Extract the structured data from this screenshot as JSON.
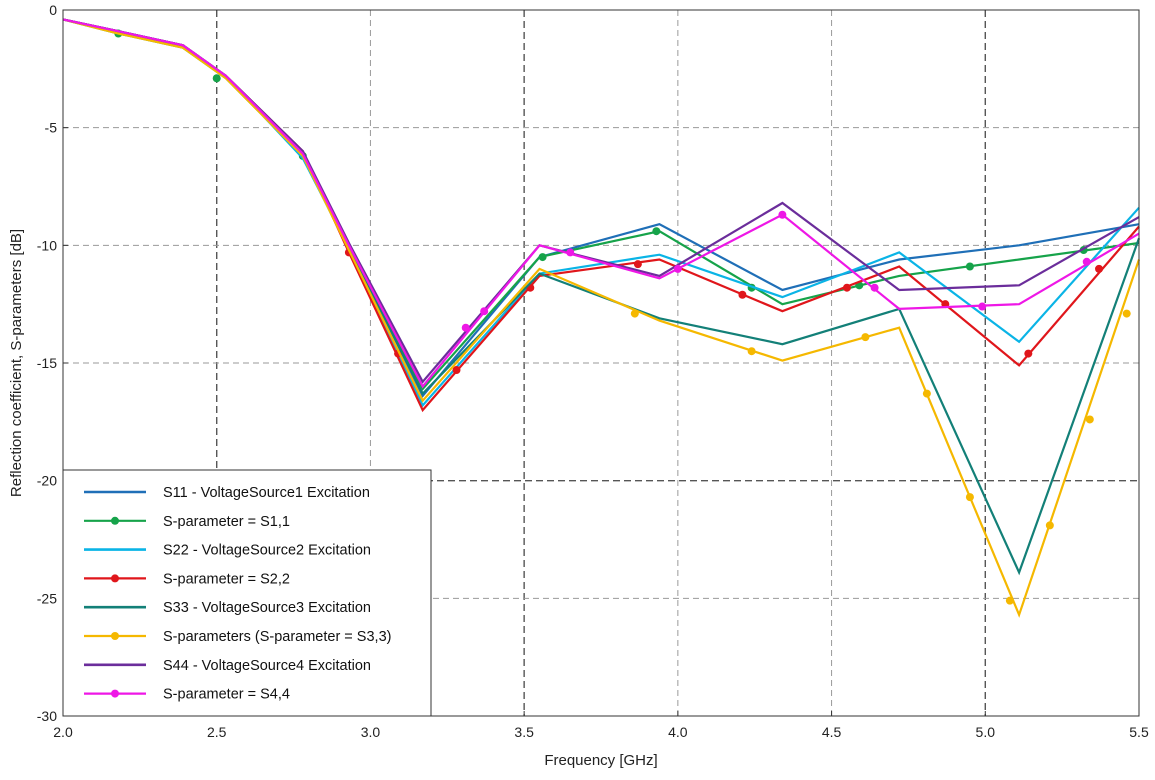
{
  "chart_data": {
    "type": "line",
    "title": "",
    "xlabel": "Frequency [GHz]",
    "ylabel": "Reflection coefficient, S-parameters [dB]",
    "xlim": [
      2.0,
      5.5
    ],
    "ylim": [
      -30,
      0
    ],
    "xticks": [
      2.0,
      2.5,
      3.0,
      3.5,
      4.0,
      4.5,
      5.0,
      5.5
    ],
    "xtick_labels": [
      "2.0",
      "2.5",
      "3.0",
      "3.5",
      "4.0",
      "4.5",
      "5.0",
      "5.5"
    ],
    "yticks": [
      0,
      -5,
      -10,
      -15,
      -20,
      -25,
      -30
    ],
    "ytick_labels": [
      "0",
      "-5",
      "-10",
      "-15",
      "-20",
      "-25",
      "-30"
    ],
    "major_grid_x": [
      2.5,
      3.5,
      5.0
    ],
    "major_grid_y": [
      -20
    ],
    "grid": true,
    "legend_position": "bottom-left",
    "series": [
      {
        "name": "S11 - VoltageSource1 Excitation",
        "color": "#1f6fb7",
        "markers": false,
        "x": [
          2.0,
          2.18,
          2.39,
          2.53,
          2.78,
          2.93,
          3.17,
          3.55,
          3.94,
          4.34,
          4.72,
          5.11,
          5.5
        ],
        "y": [
          -0.4,
          -0.9,
          -1.5,
          -2.8,
          -6.0,
          -10.0,
          -16.4,
          -10.5,
          -9.1,
          -11.9,
          -10.6,
          -10.0,
          -9.1
        ]
      },
      {
        "name": "S-parameter = S1,1",
        "color": "#16a34a",
        "markers": true,
        "x": [
          2.0,
          2.18,
          2.39,
          2.53,
          2.78,
          2.93,
          3.17,
          3.55,
          3.94,
          4.34,
          4.72,
          5.11,
          5.5
        ],
        "y": [
          -0.4,
          -1.0,
          -1.6,
          -2.9,
          -6.2,
          -10.2,
          -16.1,
          -10.5,
          -9.4,
          -12.5,
          -11.3,
          -10.6,
          -9.9
        ],
        "marker_x": [
          2.18,
          2.5,
          2.78,
          3.56,
          3.93,
          4.24,
          4.59,
          4.95,
          5.32
        ],
        "marker_y": [
          -1.0,
          -2.9,
          -6.2,
          -10.5,
          -9.4,
          -11.8,
          -11.7,
          -10.9,
          -10.2
        ]
      },
      {
        "name": "S22 - VoltageSource2 Excitation",
        "color": "#0ab4e6",
        "markers": false,
        "x": [
          2.0,
          2.18,
          2.39,
          2.53,
          2.78,
          2.93,
          3.17,
          3.55,
          3.94,
          4.34,
          4.72,
          5.11,
          5.5
        ],
        "y": [
          -0.4,
          -0.9,
          -1.5,
          -2.8,
          -6.3,
          -10.1,
          -16.8,
          -11.2,
          -10.4,
          -12.2,
          -10.3,
          -14.1,
          -8.4
        ]
      },
      {
        "name": "S-parameter = S2,2",
        "color": "#e0161b",
        "markers": true,
        "x": [
          2.0,
          2.18,
          2.39,
          2.53,
          2.78,
          2.93,
          3.17,
          3.55,
          3.94,
          4.34,
          4.72,
          5.11,
          5.5
        ],
        "y": [
          -0.4,
          -0.9,
          -1.5,
          -2.8,
          -6.0,
          -10.3,
          -17.0,
          -11.3,
          -10.6,
          -12.8,
          -10.9,
          -15.1,
          -9.2
        ],
        "marker_x": [
          2.93,
          3.09,
          3.28,
          3.52,
          3.87,
          4.21,
          4.55,
          4.87,
          5.14,
          5.37
        ],
        "marker_y": [
          -10.3,
          -14.6,
          -15.3,
          -11.8,
          -10.8,
          -12.1,
          -11.8,
          -12.5,
          -14.6,
          -11.0
        ]
      },
      {
        "name": "S33 - VoltageSource3 Excitation",
        "color": "#138078",
        "markers": false,
        "x": [
          2.0,
          2.18,
          2.39,
          2.53,
          2.78,
          2.93,
          3.17,
          3.55,
          3.94,
          4.34,
          4.72,
          5.11,
          5.5
        ],
        "y": [
          -0.4,
          -0.9,
          -1.5,
          -2.8,
          -6.1,
          -10.1,
          -16.3,
          -11.2,
          -13.1,
          -14.2,
          -12.7,
          -23.9,
          -9.7
        ]
      },
      {
        "name": "S-parameters (S-parameter = S3,3)",
        "color": "#f5b800",
        "markers": true,
        "x": [
          2.0,
          2.18,
          2.39,
          2.53,
          2.78,
          2.93,
          3.17,
          3.55,
          3.94,
          4.34,
          4.72,
          5.11,
          5.5
        ],
        "y": [
          -0.4,
          -1.0,
          -1.6,
          -2.9,
          -6.2,
          -10.2,
          -16.6,
          -11.0,
          -13.2,
          -14.9,
          -13.5,
          -25.7,
          -10.6
        ],
        "marker_x": [
          3.86,
          4.24,
          4.61,
          4.81,
          4.95,
          5.08,
          5.21,
          5.34,
          5.46
        ],
        "marker_y": [
          -12.9,
          -14.5,
          -13.9,
          -16.3,
          -20.7,
          -25.1,
          -21.9,
          -17.4,
          -12.9
        ]
      },
      {
        "name": "S44 - VoltageSource4 Excitation",
        "color": "#6b2d9b",
        "markers": false,
        "x": [
          2.0,
          2.18,
          2.39,
          2.53,
          2.78,
          2.93,
          3.17,
          3.55,
          3.94,
          4.34,
          4.72,
          5.11,
          5.5
        ],
        "y": [
          -0.4,
          -0.9,
          -1.5,
          -2.8,
          -6.0,
          -9.9,
          -15.8,
          -10.0,
          -11.3,
          -8.2,
          -11.9,
          -11.7,
          -8.8
        ]
      },
      {
        "name": "S-parameter = S4,4",
        "color": "#ee17e6",
        "markers": true,
        "x": [
          2.0,
          2.18,
          2.39,
          2.53,
          2.78,
          2.93,
          3.17,
          3.55,
          3.94,
          4.34,
          4.72,
          5.11,
          5.5
        ],
        "y": [
          -0.4,
          -0.9,
          -1.5,
          -2.8,
          -6.1,
          -10.0,
          -16.0,
          -10.0,
          -11.4,
          -8.7,
          -12.7,
          -12.5,
          -9.5
        ],
        "marker_x": [
          3.31,
          3.37,
          3.65,
          4.0,
          4.34,
          4.64,
          4.99,
          5.33
        ],
        "marker_y": [
          -13.5,
          -12.8,
          -10.3,
          -11.0,
          -8.7,
          -11.8,
          -12.6,
          -10.7
        ]
      }
    ]
  }
}
